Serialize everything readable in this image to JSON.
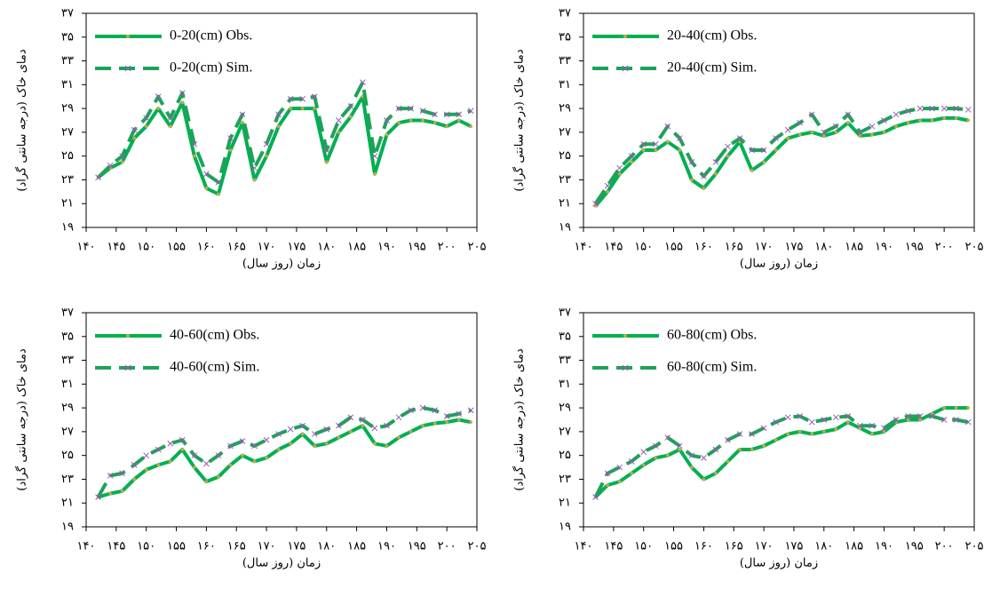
{
  "chart_data": [
    {
      "type": "line",
      "y_label": "دمای خاک (درجه سانتی گراد)",
      "x_label": "زمان (روز سال)",
      "x": [
        142,
        144,
        146,
        148,
        150,
        152,
        154,
        156,
        158,
        160,
        162,
        164,
        166,
        168,
        170,
        172,
        174,
        176,
        178,
        180,
        182,
        184,
        186,
        188,
        190,
        192,
        194,
        196,
        198,
        200,
        202,
        204
      ],
      "series": [
        {
          "name": "0-20(cm) Obs.",
          "color": "#00b050",
          "linestyle": "solid",
          "marker": "circle",
          "marker_color": "#c8a84a",
          "values": [
            23.2,
            24,
            24.5,
            26.5,
            27.5,
            29,
            27.5,
            29.5,
            25,
            22.3,
            21.8,
            25.5,
            27.8,
            23,
            25,
            27.5,
            29,
            29,
            29,
            24.5,
            27,
            28.3,
            30,
            23.5,
            26.8,
            27.8,
            28,
            28,
            27.8,
            27.5,
            28,
            27.5
          ]
        },
        {
          "name": "0-20(cm) Sim.",
          "color": "#1ea25a",
          "linestyle": "dashed",
          "marker": "x",
          "marker_color": "#9b59b6",
          "values": [
            23.2,
            24.2,
            25,
            27.2,
            28.2,
            30,
            28.2,
            30.3,
            26,
            23.5,
            22.8,
            26.5,
            28.5,
            24,
            26,
            28.5,
            29.8,
            29.8,
            30,
            25.5,
            28,
            29.2,
            31.2,
            25,
            28,
            29,
            29,
            28.8,
            28.5,
            28.5,
            28.5,
            28.8
          ]
        }
      ],
      "xlim": [
        140,
        205
      ],
      "ylim": [
        19,
        37
      ],
      "xticks": [
        {
          "value": 140,
          "label": "۱۴۰"
        },
        {
          "value": 145,
          "label": "۱۴۵"
        },
        {
          "value": 150,
          "label": "۱۵۰"
        },
        {
          "value": 155,
          "label": "۱۵۵"
        },
        {
          "value": 160,
          "label": "۱۶۰"
        },
        {
          "value": 165,
          "label": "۱۶۵"
        },
        {
          "value": 170,
          "label": "۱۷۰"
        },
        {
          "value": 175,
          "label": "۱۷۵"
        },
        {
          "value": 180,
          "label": "۱۸۰"
        },
        {
          "value": 185,
          "label": "۱۸۵"
        },
        {
          "value": 190,
          "label": "۱۹۰"
        },
        {
          "value": 195,
          "label": "۱۹۵"
        },
        {
          "value": 200,
          "label": "۲۰۰"
        },
        {
          "value": 205,
          "label": "۲۰۵"
        }
      ],
      "yticks": [
        {
          "value": 19,
          "label": "۱۹"
        },
        {
          "value": 21,
          "label": "۲۱"
        },
        {
          "value": 23,
          "label": "۲۳"
        },
        {
          "value": 25,
          "label": "۲۵"
        },
        {
          "value": 27,
          "label": "۲۷"
        },
        {
          "value": 29,
          "label": "۲۹"
        },
        {
          "value": 31,
          "label": "۳۱"
        },
        {
          "value": 33,
          "label": "۳۳"
        },
        {
          "value": 35,
          "label": "۳۵"
        },
        {
          "value": 37,
          "label": "۳۷"
        }
      ],
      "legend": "upper left"
    },
    {
      "type": "line",
      "y_label": "دمای خاک (درجه سانتی گراد)",
      "x_label": "زمان (روز سال)",
      "x": [
        142,
        144,
        146,
        148,
        150,
        152,
        154,
        156,
        158,
        160,
        162,
        164,
        166,
        168,
        170,
        172,
        174,
        176,
        178,
        180,
        182,
        184,
        186,
        188,
        190,
        192,
        194,
        196,
        198,
        200,
        202,
        204
      ],
      "series": [
        {
          "name": "20-40(cm) Obs.",
          "color": "#00b050",
          "linestyle": "solid",
          "marker": "circle",
          "marker_color": "#c8a84a",
          "values": [
            20.8,
            22,
            23.5,
            24.5,
            25.5,
            25.5,
            26.2,
            25.5,
            23,
            22.3,
            23.5,
            25,
            26.2,
            23.8,
            24.5,
            25.5,
            26.5,
            26.8,
            27,
            26.7,
            27,
            27.8,
            26.7,
            26.8,
            27,
            27.5,
            27.8,
            28,
            28,
            28.2,
            28.2,
            28
          ]
        },
        {
          "name": "20-40(cm) Sim.",
          "color": "#1ea25a",
          "linestyle": "dashed",
          "marker": "x",
          "marker_color": "#9b59b6",
          "values": [
            21,
            22.5,
            24,
            25,
            26,
            26,
            27.5,
            26.5,
            24.5,
            23.3,
            24.5,
            25.8,
            26.5,
            25.5,
            25.5,
            26.5,
            27.2,
            27.8,
            28.5,
            27,
            27.5,
            28.5,
            27,
            27.5,
            28,
            28.5,
            28.8,
            29,
            29,
            29,
            29,
            28.9
          ]
        }
      ],
      "xlim": [
        140,
        205
      ],
      "ylim": [
        19,
        37
      ],
      "xticks": [
        {
          "value": 140,
          "label": "۱۴۰"
        },
        {
          "value": 145,
          "label": "۱۴۵"
        },
        {
          "value": 150,
          "label": "۱۵۰"
        },
        {
          "value": 155,
          "label": "۱۵۵"
        },
        {
          "value": 160,
          "label": "۱۶۰"
        },
        {
          "value": 165,
          "label": "۱۶۵"
        },
        {
          "value": 170,
          "label": "۱۷۰"
        },
        {
          "value": 175,
          "label": "۱۷۵"
        },
        {
          "value": 180,
          "label": "۱۸۰"
        },
        {
          "value": 185,
          "label": "۱۸۵"
        },
        {
          "value": 190,
          "label": "۱۹۰"
        },
        {
          "value": 195,
          "label": "۱۹۵"
        },
        {
          "value": 200,
          "label": "۲۰۰"
        },
        {
          "value": 205,
          "label": "۲۰۵"
        }
      ],
      "yticks": [
        {
          "value": 19,
          "label": "۱۹"
        },
        {
          "value": 21,
          "label": "۲۱"
        },
        {
          "value": 23,
          "label": "۲۳"
        },
        {
          "value": 25,
          "label": "۲۵"
        },
        {
          "value": 27,
          "label": "۲۷"
        },
        {
          "value": 29,
          "label": "۲۹"
        },
        {
          "value": 31,
          "label": "۳۱"
        },
        {
          "value": 33,
          "label": "۳۳"
        },
        {
          "value": 35,
          "label": "۳۵"
        },
        {
          "value": 37,
          "label": "۳۷"
        }
      ],
      "legend": "upper left"
    },
    {
      "type": "line",
      "y_label": "دمای خاک (درجه سانتی گراد)",
      "x_label": "زمان (روز سال)",
      "x": [
        142,
        144,
        146,
        148,
        150,
        152,
        154,
        156,
        158,
        160,
        162,
        164,
        166,
        168,
        170,
        172,
        174,
        176,
        178,
        180,
        182,
        184,
        186,
        188,
        190,
        192,
        194,
        196,
        198,
        200,
        202,
        204
      ],
      "series": [
        {
          "name": "40-60(cm) Obs.",
          "color": "#00b050",
          "linestyle": "solid",
          "marker": "circle",
          "marker_color": "#c8a84a",
          "values": [
            21.5,
            21.8,
            22,
            23,
            23.8,
            24.2,
            24.5,
            25.5,
            24,
            22.8,
            23.2,
            24.2,
            25,
            24.5,
            24.8,
            25.5,
            26,
            26.8,
            25.8,
            26,
            26.5,
            27,
            27.5,
            26,
            25.8,
            26.5,
            27,
            27.5,
            27.7,
            27.8,
            28,
            27.8
          ]
        },
        {
          "name": "40-60(cm) Sim.",
          "color": "#1ea25a",
          "linestyle": "dashed",
          "marker": "x",
          "marker_color": "#9b59b6",
          "values": [
            21.5,
            23.3,
            23.5,
            24.2,
            25,
            25.5,
            26,
            26.3,
            25,
            24.3,
            25,
            25.8,
            26.2,
            25.8,
            26.3,
            26.8,
            27.2,
            27.5,
            26.8,
            27.2,
            27.5,
            28.2,
            28,
            27.3,
            27.5,
            28.2,
            28.8,
            29,
            28.8,
            28.3,
            28.5,
            28.8
          ]
        }
      ],
      "xlim": [
        140,
        205
      ],
      "ylim": [
        19,
        37
      ],
      "xticks": [
        {
          "value": 140,
          "label": "۱۴۰"
        },
        {
          "value": 145,
          "label": "۱۴۵"
        },
        {
          "value": 150,
          "label": "۱۵۰"
        },
        {
          "value": 155,
          "label": "۱۵۵"
        },
        {
          "value": 160,
          "label": "۱۶۰"
        },
        {
          "value": 165,
          "label": "۱۶۵"
        },
        {
          "value": 170,
          "label": "۱۷۰"
        },
        {
          "value": 175,
          "label": "۱۷۵"
        },
        {
          "value": 180,
          "label": "۱۸۰"
        },
        {
          "value": 185,
          "label": "۱۸۵"
        },
        {
          "value": 190,
          "label": "۱۹۰"
        },
        {
          "value": 195,
          "label": "۱۹۵"
        },
        {
          "value": 200,
          "label": "۲۰۰"
        },
        {
          "value": 205,
          "label": "۲۰۵"
        }
      ],
      "yticks": [
        {
          "value": 19,
          "label": "۱۹"
        },
        {
          "value": 21,
          "label": "۲۱"
        },
        {
          "value": 23,
          "label": "۲۳"
        },
        {
          "value": 25,
          "label": "۲۵"
        },
        {
          "value": 27,
          "label": "۲۷"
        },
        {
          "value": 29,
          "label": "۲۹"
        },
        {
          "value": 31,
          "label": "۳۱"
        },
        {
          "value": 33,
          "label": "۳۳"
        },
        {
          "value": 35,
          "label": "۳۵"
        },
        {
          "value": 37,
          "label": "۳۷"
        }
      ],
      "legend": "upper left"
    },
    {
      "type": "line",
      "y_label": "دمای خاک (درجه سانتی گراد)",
      "x_label": "زمان (روز سال)",
      "x": [
        142,
        144,
        146,
        148,
        150,
        152,
        154,
        156,
        158,
        160,
        162,
        164,
        166,
        168,
        170,
        172,
        174,
        176,
        178,
        180,
        182,
        184,
        186,
        188,
        190,
        192,
        194,
        196,
        198,
        200,
        202,
        204
      ],
      "series": [
        {
          "name": "60-80(cm) Obs.",
          "color": "#00b050",
          "linestyle": "solid",
          "marker": "circle",
          "marker_color": "#c8a84a",
          "values": [
            21.5,
            22.5,
            22.8,
            23.5,
            24.2,
            24.8,
            25,
            25.5,
            24,
            23,
            23.5,
            24.5,
            25.5,
            25.5,
            25.8,
            26.3,
            26.8,
            27,
            26.8,
            27,
            27.2,
            27.8,
            27.3,
            26.8,
            27,
            27.8,
            28,
            28,
            28.5,
            29,
            29,
            29
          ]
        },
        {
          "name": "60-80(cm) Sim.",
          "color": "#1ea25a",
          "linestyle": "dashed",
          "marker": "x",
          "marker_color": "#9b59b6",
          "values": [
            21.5,
            23.5,
            24,
            24.5,
            25.3,
            25.8,
            26.5,
            25.8,
            25,
            24.8,
            25.5,
            26.3,
            26.8,
            26.8,
            27.3,
            27.8,
            28.2,
            28.3,
            27.8,
            28,
            28.2,
            28.3,
            27.5,
            27.5,
            27.3,
            28,
            28.3,
            28.3,
            28.3,
            28,
            28,
            27.8
          ]
        }
      ],
      "xlim": [
        140,
        205
      ],
      "ylim": [
        19,
        37
      ],
      "xticks": [
        {
          "value": 140,
          "label": "۱۴۰"
        },
        {
          "value": 145,
          "label": "۱۴۵"
        },
        {
          "value": 150,
          "label": "۱۵۰"
        },
        {
          "value": 155,
          "label": "۱۵۵"
        },
        {
          "value": 160,
          "label": "۱۶۰"
        },
        {
          "value": 165,
          "label": "۱۶۵"
        },
        {
          "value": 170,
          "label": "۱۷۰"
        },
        {
          "value": 175,
          "label": "۱۷۵"
        },
        {
          "value": 180,
          "label": "۱۸۰"
        },
        {
          "value": 185,
          "label": "۱۸۵"
        },
        {
          "value": 190,
          "label": "۱۹۰"
        },
        {
          "value": 195,
          "label": "۱۹۵"
        },
        {
          "value": 200,
          "label": "۲۰۰"
        },
        {
          "value": 205,
          "label": "۲۰۵"
        }
      ],
      "yticks": [
        {
          "value": 19,
          "label": "۱۹"
        },
        {
          "value": 21,
          "label": "۲۱"
        },
        {
          "value": 23,
          "label": "۲۳"
        },
        {
          "value": 25,
          "label": "۲۵"
        },
        {
          "value": 27,
          "label": "۲۷"
        },
        {
          "value": 29,
          "label": "۲۹"
        },
        {
          "value": 31,
          "label": "۳۱"
        },
        {
          "value": 33,
          "label": "۳۳"
        },
        {
          "value": 35,
          "label": "۳۵"
        },
        {
          "value": 37,
          "label": "۳۷"
        }
      ],
      "legend": "upper left"
    }
  ]
}
